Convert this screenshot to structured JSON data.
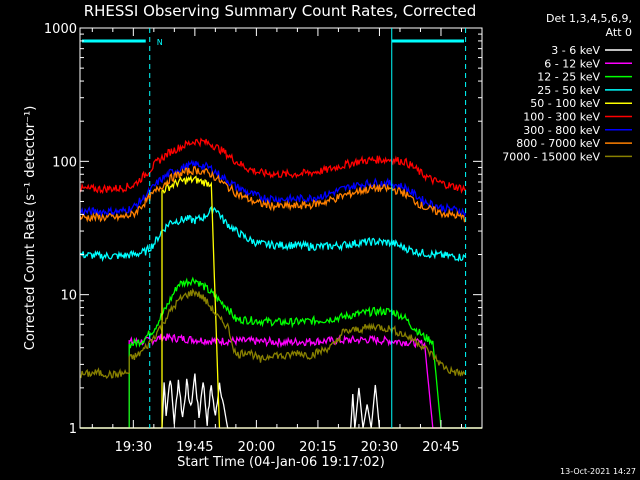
{
  "chart_data": {
    "type": "line",
    "title": "RHESSI Observing Summary Count Rates, Corrected",
    "xlabel": "Start Time (04-Jan-06 19:17:02)",
    "ylabel": "Corrected Count Rate (s⁻¹ detector⁻¹)",
    "yscale": "log",
    "ylim": [
      1,
      1000
    ],
    "xlim_minutes_after_start": [
      0,
      98
    ],
    "x_ticks": [
      {
        "label": "19:30",
        "minute": 13
      },
      {
        "label": "19:45",
        "minute": 28
      },
      {
        "label": "20:00",
        "minute": 43
      },
      {
        "label": "20:15",
        "minute": 58
      },
      {
        "label": "20:30",
        "minute": 73
      },
      {
        "label": "20:45",
        "minute": 88
      }
    ],
    "y_ticks": [
      {
        "label": "1",
        "value": 1
      },
      {
        "label": "10",
        "value": 10
      },
      {
        "label": "100",
        "value": 100
      },
      {
        "label": "1000",
        "value": 1000
      }
    ],
    "legend_header": [
      "Det 1,3,4,5,6,9,",
      "Att 0"
    ],
    "legend_position": "right",
    "annotation": {
      "label": "N",
      "color": "#00ffff"
    },
    "markers": [
      {
        "minute": 17,
        "style": "dashed"
      },
      {
        "minute": 76,
        "style": "solid"
      },
      {
        "minute": 94,
        "style": "dashed"
      }
    ],
    "series": [
      {
        "name": "3 - 6 keV",
        "color": "#ffffff",
        "points": [
          [
            0,
            1
          ],
          [
            20,
            1
          ],
          [
            20.5,
            2.2
          ],
          [
            21,
            1.3
          ],
          [
            22,
            2.4
          ],
          [
            23,
            1.1
          ],
          [
            24,
            2.3
          ],
          [
            25,
            1.2
          ],
          [
            26,
            2.2
          ],
          [
            27,
            1.4
          ],
          [
            28,
            2.5
          ],
          [
            29,
            1.2
          ],
          [
            30,
            2.3
          ],
          [
            31,
            1.1
          ],
          [
            32,
            2.1
          ],
          [
            33,
            1.2
          ],
          [
            34,
            2.2
          ],
          [
            35,
            1.5
          ],
          [
            36,
            1
          ],
          [
            66,
            1
          ],
          [
            66.5,
            1.8
          ],
          [
            67,
            1
          ],
          [
            68,
            2
          ],
          [
            69,
            1
          ],
          [
            70,
            1.5
          ],
          [
            71,
            1
          ],
          [
            72,
            2.1
          ],
          [
            73,
            1
          ],
          [
            98,
            1
          ]
        ]
      },
      {
        "name": "6 - 12 keV",
        "color": "#ff00ff",
        "points": [
          [
            0,
            1
          ],
          [
            12,
            1
          ],
          [
            12,
            4.4
          ],
          [
            17,
            4.5
          ],
          [
            20,
            4.8
          ],
          [
            24,
            4.7
          ],
          [
            28,
            4.6
          ],
          [
            33,
            4.5
          ],
          [
            40,
            4.5
          ],
          [
            50,
            4.4
          ],
          [
            60,
            4.5
          ],
          [
            70,
            4.6
          ],
          [
            76,
            4.5
          ],
          [
            80,
            4.4
          ],
          [
            84,
            4.3
          ],
          [
            86,
            1
          ],
          [
            98,
            1
          ]
        ]
      },
      {
        "name": "12 - 25 keV",
        "color": "#00ff00",
        "points": [
          [
            0,
            1
          ],
          [
            12,
            1
          ],
          [
            12,
            4.2
          ],
          [
            15,
            4.5
          ],
          [
            18,
            5.5
          ],
          [
            21,
            8
          ],
          [
            24,
            12
          ],
          [
            28,
            13
          ],
          [
            31,
            11
          ],
          [
            34,
            9
          ],
          [
            36,
            8
          ],
          [
            38,
            6.5
          ],
          [
            40,
            6.5
          ],
          [
            45,
            6.3
          ],
          [
            50,
            6.2
          ],
          [
            55,
            6.3
          ],
          [
            60,
            6.5
          ],
          [
            64,
            6.8
          ],
          [
            68,
            7.2
          ],
          [
            72,
            7.5
          ],
          [
            76,
            7.5
          ],
          [
            79,
            6.8
          ],
          [
            81,
            5.8
          ],
          [
            84,
            4.8
          ],
          [
            86,
            4.5
          ],
          [
            88,
            1
          ],
          [
            98,
            1
          ]
        ]
      },
      {
        "name": "25 - 50 keV",
        "color": "#00ffff",
        "points": [
          [
            0,
            20
          ],
          [
            5,
            19.5
          ],
          [
            10,
            19.5
          ],
          [
            13,
            20
          ],
          [
            16,
            21
          ],
          [
            18,
            24
          ],
          [
            20,
            30
          ],
          [
            22,
            35
          ],
          [
            24,
            36
          ],
          [
            26,
            37
          ],
          [
            28,
            36
          ],
          [
            30,
            38
          ],
          [
            33,
            45
          ],
          [
            35,
            36
          ],
          [
            38,
            30
          ],
          [
            41,
            26
          ],
          [
            44,
            24
          ],
          [
            48,
            23.5
          ],
          [
            52,
            23.5
          ],
          [
            56,
            23
          ],
          [
            60,
            23
          ],
          [
            64,
            23.5
          ],
          [
            68,
            24.5
          ],
          [
            72,
            25
          ],
          [
            76,
            24.5
          ],
          [
            79,
            22.5
          ],
          [
            82,
            21
          ],
          [
            86,
            20
          ],
          [
            90,
            19.5
          ],
          [
            94,
            19
          ]
        ]
      },
      {
        "name": "50 - 100 keV",
        "color": "#ffff00",
        "points": [
          [
            0,
            1
          ],
          [
            20,
            1
          ],
          [
            20,
            60
          ],
          [
            22,
            65
          ],
          [
            24,
            70
          ],
          [
            26,
            72
          ],
          [
            28,
            73
          ],
          [
            30,
            70
          ],
          [
            32,
            68
          ],
          [
            34,
            1
          ],
          [
            98,
            1
          ]
        ]
      },
      {
        "name": "100 - 300 keV",
        "color": "#ff0000",
        "points": [
          [
            0,
            62
          ],
          [
            5,
            62
          ],
          [
            10,
            63
          ],
          [
            13,
            66
          ],
          [
            16,
            80
          ],
          [
            19,
            100
          ],
          [
            22,
            118
          ],
          [
            25,
            130
          ],
          [
            28,
            142
          ],
          [
            30,
            140
          ],
          [
            32,
            135
          ],
          [
            35,
            118
          ],
          [
            38,
            100
          ],
          [
            41,
            88
          ],
          [
            44,
            82
          ],
          [
            48,
            80
          ],
          [
            52,
            80
          ],
          [
            56,
            82
          ],
          [
            60,
            86
          ],
          [
            64,
            93
          ],
          [
            68,
            100
          ],
          [
            72,
            103
          ],
          [
            76,
            103
          ],
          [
            79,
            100
          ],
          [
            81,
            92
          ],
          [
            83,
            82
          ],
          [
            86,
            72
          ],
          [
            90,
            66
          ],
          [
            94,
            62
          ]
        ]
      },
      {
        "name": "300 - 800 keV",
        "color": "#0000ff",
        "points": [
          [
            0,
            42
          ],
          [
            5,
            42
          ],
          [
            10,
            42
          ],
          [
            13,
            45
          ],
          [
            16,
            55
          ],
          [
            19,
            70
          ],
          [
            22,
            82
          ],
          [
            25,
            90
          ],
          [
            28,
            95
          ],
          [
            30,
            93
          ],
          [
            32,
            88
          ],
          [
            35,
            75
          ],
          [
            38,
            65
          ],
          [
            41,
            58
          ],
          [
            44,
            54
          ],
          [
            48,
            52
          ],
          [
            52,
            52
          ],
          [
            56,
            53
          ],
          [
            60,
            56
          ],
          [
            64,
            62
          ],
          [
            68,
            67
          ],
          [
            72,
            69
          ],
          [
            76,
            68
          ],
          [
            79,
            64
          ],
          [
            81,
            58
          ],
          [
            84,
            50
          ],
          [
            88,
            45
          ],
          [
            92,
            43
          ],
          [
            94,
            41
          ]
        ]
      },
      {
        "name": "800 - 7000 keV",
        "color": "#ff8000",
        "points": [
          [
            0,
            38
          ],
          [
            5,
            38
          ],
          [
            10,
            38
          ],
          [
            13,
            40
          ],
          [
            16,
            50
          ],
          [
            19,
            62
          ],
          [
            22,
            74
          ],
          [
            25,
            82
          ],
          [
            28,
            86
          ],
          [
            30,
            84
          ],
          [
            32,
            80
          ],
          [
            35,
            68
          ],
          [
            38,
            58
          ],
          [
            41,
            52
          ],
          [
            44,
            48
          ],
          [
            48,
            46
          ],
          [
            52,
            46
          ],
          [
            56,
            47
          ],
          [
            60,
            50
          ],
          [
            64,
            55
          ],
          [
            68,
            60
          ],
          [
            72,
            63
          ],
          [
            76,
            62
          ],
          [
            79,
            58
          ],
          [
            81,
            52
          ],
          [
            84,
            45
          ],
          [
            88,
            41
          ],
          [
            92,
            39
          ],
          [
            94,
            37
          ]
        ]
      },
      {
        "name": "7000 - 15000 keV",
        "color": "#888000",
        "points": [
          [
            0,
            2.5
          ],
          [
            4,
            2.6
          ],
          [
            8,
            2.5
          ],
          [
            12,
            2.6
          ],
          [
            12,
            3.3
          ],
          [
            14,
            3.5
          ],
          [
            16,
            4
          ],
          [
            18,
            4.8
          ],
          [
            20,
            6
          ],
          [
            22,
            7.5
          ],
          [
            24,
            9
          ],
          [
            26,
            10
          ],
          [
            28,
            10.5
          ],
          [
            30,
            9.5
          ],
          [
            32,
            8
          ],
          [
            34,
            6.5
          ],
          [
            36,
            5.8
          ],
          [
            38,
            3.5
          ],
          [
            41,
            3.8
          ],
          [
            44,
            3.2
          ],
          [
            47,
            3.6
          ],
          [
            50,
            3.4
          ],
          [
            53,
            3.7
          ],
          [
            56,
            3.5
          ],
          [
            59,
            3.8
          ],
          [
            62,
            4.2
          ],
          [
            64,
            5.2
          ],
          [
            68,
            5.5
          ],
          [
            72,
            5.8
          ],
          [
            76,
            5.5
          ],
          [
            79,
            5
          ],
          [
            82,
            4.5
          ],
          [
            84,
            4
          ],
          [
            86,
            3.5
          ],
          [
            88,
            3
          ],
          [
            90,
            2.7
          ],
          [
            94,
            2.5
          ]
        ]
      }
    ]
  },
  "footer": {
    "timestamp": "13-Oct-2021 14:27"
  }
}
